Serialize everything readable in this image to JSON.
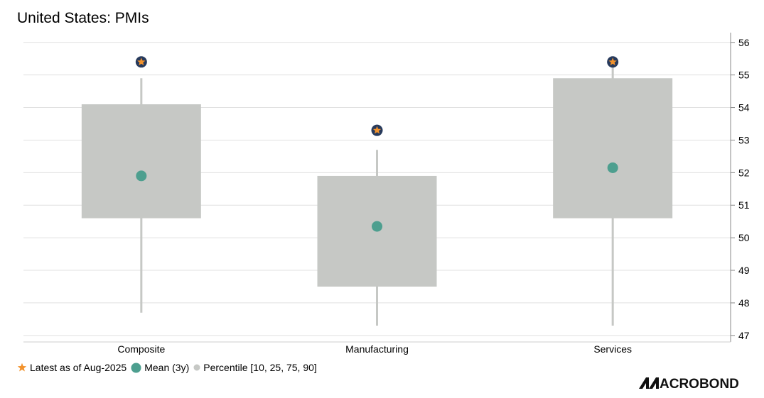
{
  "title": "United States: PMIs",
  "chart_data": {
    "type": "box",
    "categories": [
      "Composite",
      "Manufacturing",
      "Services"
    ],
    "series": [
      {
        "name": "Percentile [10, 25, 75, 90]",
        "p10": [
          47.7,
          47.3,
          47.3
        ],
        "p25": [
          50.6,
          48.5,
          50.6
        ],
        "p75": [
          54.1,
          51.9,
          54.9
        ],
        "p90": [
          54.9,
          52.7,
          55.3
        ]
      },
      {
        "name": "Mean (3y)",
        "values": [
          51.9,
          50.35,
          52.15
        ]
      },
      {
        "name": "Latest as of Aug-2025",
        "values": [
          55.4,
          53.3,
          55.4
        ]
      }
    ],
    "yticks": [
      "47",
      "48",
      "49",
      "50",
      "51",
      "52",
      "53",
      "54",
      "55",
      "56"
    ],
    "ylim": [
      46.8,
      56.3
    ],
    "y_axis_side": "right",
    "grid": true,
    "legend_position": "bottom-left",
    "colors": {
      "box": "#c6c8c5",
      "whisker": "#c6c8c5",
      "mean": "#4d9f8f",
      "star": "#f2922c",
      "star_outline": "#273a5c",
      "grid": "#e0e0e0"
    }
  },
  "logo_text": "MACROBOND"
}
